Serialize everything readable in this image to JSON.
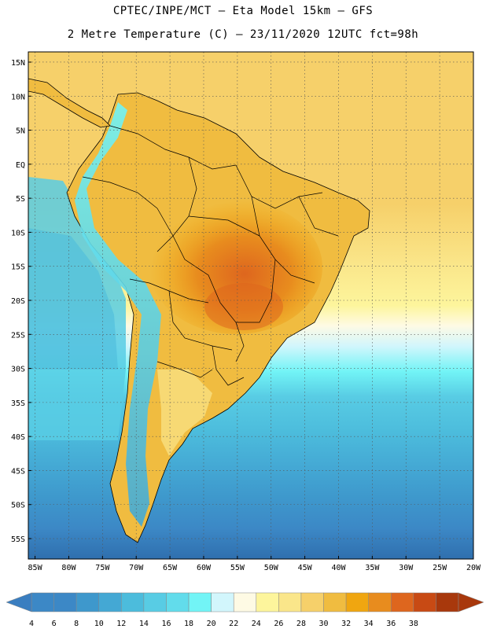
{
  "header": {
    "line1": "CPTEC/INPE/MCT –  Eta Model 15km – GFS",
    "line2": "2 Metre Temperature (C) – 23/11/2020 12UTC fct=98h"
  },
  "map": {
    "lat_labels": [
      "15N",
      "10N",
      "5N",
      "EQ",
      "5S",
      "10S",
      "15S",
      "20S",
      "25S",
      "30S",
      "35S",
      "40S",
      "45S",
      "50S",
      "55S"
    ],
    "lat_values": [
      15,
      10,
      5,
      0,
      -5,
      -10,
      -15,
      -20,
      -25,
      -30,
      -35,
      -40,
      -45,
      -50,
      -55
    ],
    "lon_labels": [
      "85W",
      "80W",
      "75W",
      "70W",
      "65W",
      "60W",
      "55W",
      "50W",
      "45W",
      "40W",
      "35W",
      "30W",
      "25W",
      "20W"
    ],
    "lon_values": [
      -85,
      -80,
      -75,
      -70,
      -65,
      -60,
      -55,
      -50,
      -45,
      -40,
      -35,
      -30,
      -25,
      -20
    ],
    "extent": {
      "lon_min": -86,
      "lon_max": -20,
      "lat_min": -58,
      "lat_max": 16.5
    }
  },
  "colorbar": {
    "labels": [
      "4",
      "6",
      "8",
      "10",
      "12",
      "14",
      "16",
      "18",
      "20",
      "22",
      "24",
      "26",
      "28",
      "30",
      "32",
      "34",
      "36",
      "38"
    ],
    "colors": [
      "#3c88c6",
      "#3c88c6",
      "#3e98cc",
      "#44a8d4",
      "#4cbcdc",
      "#58cce4",
      "#62dceb",
      "#72f4f6",
      "#d2f6fc",
      "#fefae4",
      "#fdf59c",
      "#fae68a",
      "#f6d06a",
      "#f0bc40",
      "#f0a610",
      "#e88c1e",
      "#de661e",
      "#c84a14",
      "#a8380c"
    ],
    "left_arrow_color": "#3a7ec0",
    "right_arrow_color": "#a8380c"
  }
}
